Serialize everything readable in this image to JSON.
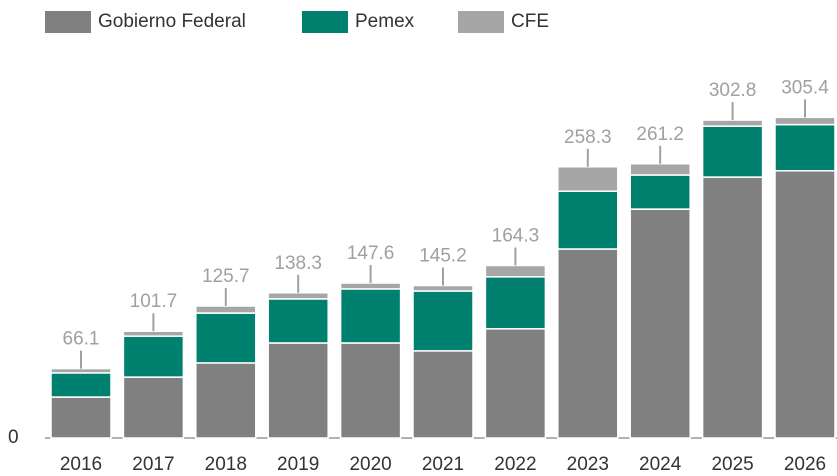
{
  "chart_data": {
    "type": "stacked_bar",
    "categories": [
      "2016",
      "2017",
      "2018",
      "2019",
      "2020",
      "2021",
      "2022",
      "2023",
      "2024",
      "2025",
      "2026"
    ],
    "series": [
      {
        "name": "Gobierno Federal",
        "color": "#808080",
        "values": [
          39,
          58,
          71.5,
          90.5,
          90.5,
          83,
          104,
          180,
          218,
          248.5,
          254.5
        ]
      },
      {
        "name": "Pemex",
        "color": "#00806e",
        "values": [
          23,
          39,
          47.5,
          42,
          51.5,
          57,
          49.5,
          55,
          32.5,
          48.5,
          44
        ]
      },
      {
        "name": "CFE",
        "color": "#a6a6a6",
        "values": [
          4.1,
          4.7,
          6.7,
          5.8,
          5.6,
          5.2,
          10.8,
          23.3,
          10.7,
          5.8,
          6.9
        ]
      }
    ],
    "totals": [
      66.1,
      101.7,
      125.7,
      138.3,
      147.6,
      145.2,
      164.3,
      258.3,
      261.2,
      302.8,
      305.4
    ],
    "ylim": [
      0,
      320
    ],
    "yticks": [
      0
    ],
    "grid": false
  }
}
